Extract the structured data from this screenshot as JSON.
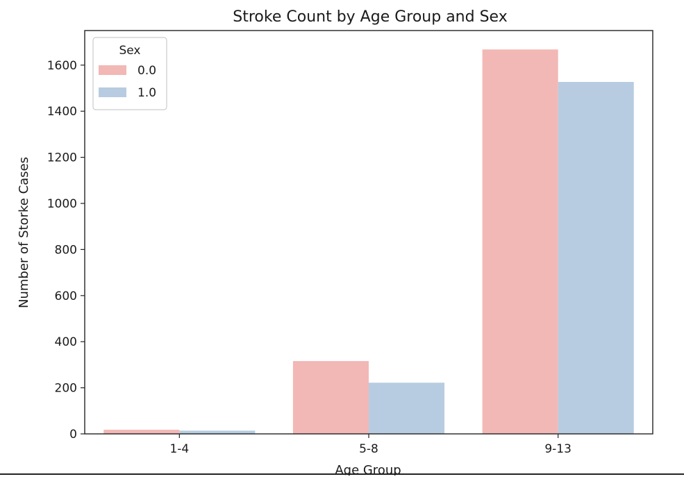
{
  "chart_data": {
    "type": "bar",
    "title": "Stroke Count by Age Group and Sex",
    "xlabel": "Age Group",
    "ylabel": "Number of Storke Cases",
    "categories": [
      "1-4",
      "5-8",
      "9-13"
    ],
    "series": [
      {
        "name": "0.0",
        "color": "#f2b8b5",
        "values": [
          18,
          316,
          1668
        ]
      },
      {
        "name": "1.0",
        "color": "#b7cce0",
        "values": [
          14,
          222,
          1527
        ]
      }
    ],
    "yticks": [
      "0",
      "200",
      "400",
      "600",
      "800",
      "1000",
      "1200",
      "1400",
      "1600"
    ],
    "ylim": [
      0,
      1750
    ],
    "grid": false,
    "legend": {
      "title": "Sex",
      "placement": "top-left"
    }
  }
}
